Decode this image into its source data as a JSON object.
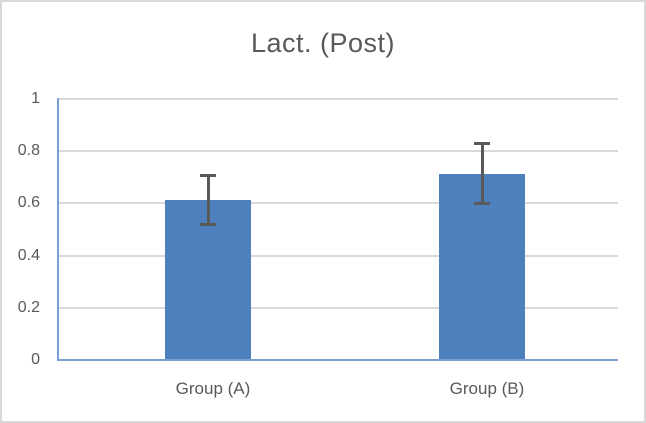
{
  "chart_data": {
    "type": "bar",
    "title": "Lact. (Post)",
    "categories": [
      "Group (A)",
      "Group (B)"
    ],
    "series": [
      {
        "name": "Lact. (Post)",
        "values": [
          0.61,
          0.71
        ],
        "errors": [
          0.1,
          0.12
        ]
      }
    ],
    "values": [
      0.61,
      0.71
    ],
    "errors": [
      0.1,
      0.12
    ],
    "xlabel": "",
    "ylabel": "",
    "ylim": [
      0,
      1
    ],
    "ytick_step": 0.2,
    "yticks_top_to_bottom": [
      "1",
      "0.8",
      "0.6",
      "0.4",
      "0.2",
      "0"
    ],
    "grid": true,
    "legend": "none",
    "colors": {
      "bar_fill": "#4d80bc",
      "axis_line": "#7aa0d4",
      "gridline": "#d9d9d9",
      "error_bar": "#595959",
      "text": "#595959",
      "frame_border": "#d9d9d9",
      "background": "#ffffff"
    }
  }
}
